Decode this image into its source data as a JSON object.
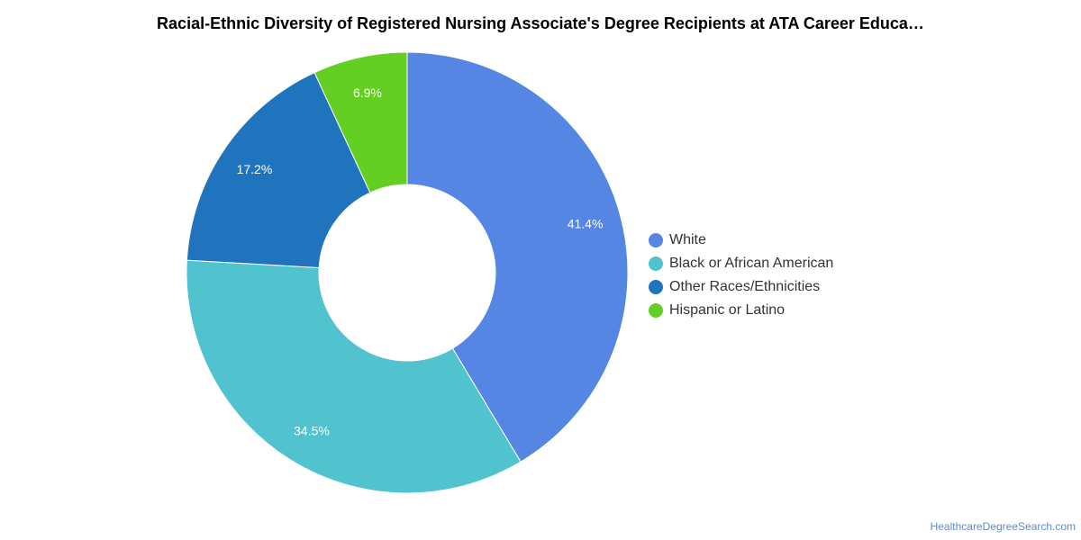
{
  "chart_data": {
    "type": "pie",
    "donut": true,
    "title": "Racial-Ethnic Diversity of Registered Nursing Associate's Degree Recipients at ATA Career Educa…",
    "legend_position": "right",
    "slices": [
      {
        "name": "White",
        "value": 41.4,
        "label": "41.4%",
        "color": "#5586e3"
      },
      {
        "name": "Black or African American",
        "value": 34.5,
        "label": "34.5%",
        "color": "#51c3cf"
      },
      {
        "name": "Other Races/Ethnicities",
        "value": 17.2,
        "label": "17.2%",
        "color": "#1f74bd"
      },
      {
        "name": "Hispanic or Latino",
        "value": 6.9,
        "label": "6.9%",
        "color": "#64cf23"
      }
    ]
  },
  "source": "HealthcareDegreeSearch.com"
}
